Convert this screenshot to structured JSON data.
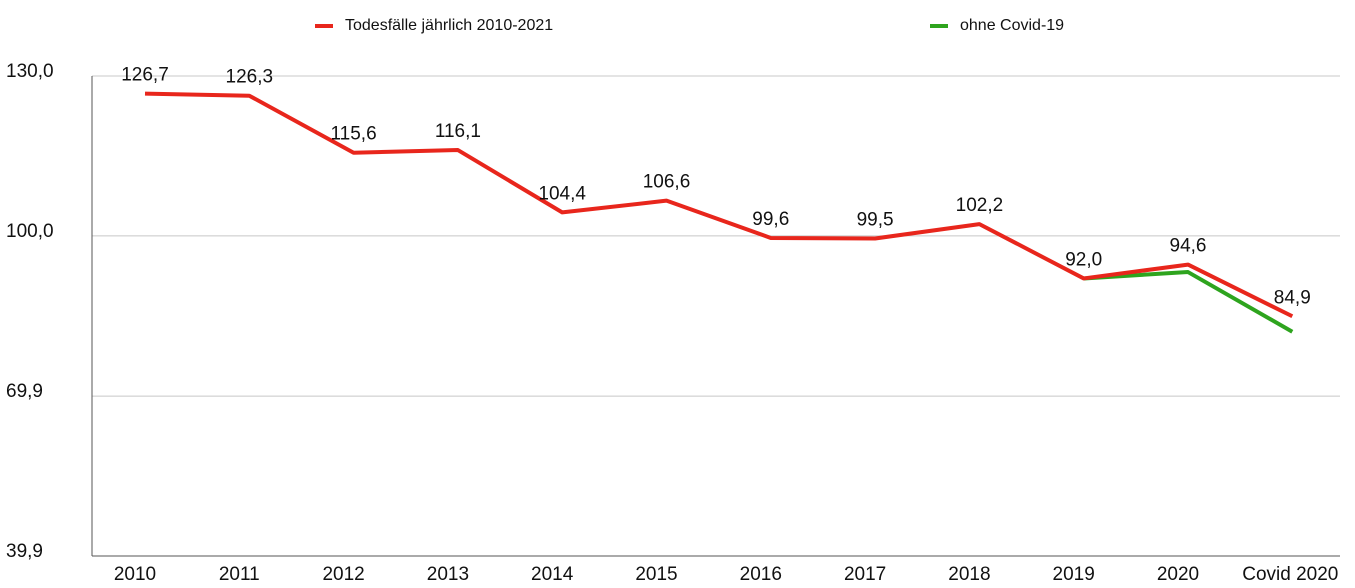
{
  "chart_data": {
    "type": "line",
    "categories": [
      "2010",
      "2011",
      "2012",
      "2013",
      "2014",
      "2015",
      "2016",
      "2017",
      "2018",
      "2019",
      "2020",
      "Covid 2020"
    ],
    "series": [
      {
        "name": "Todesfälle jährlich 2010-2021",
        "color": "#e8261c",
        "values": [
          126.7,
          126.3,
          115.6,
          116.1,
          104.4,
          106.6,
          99.6,
          99.5,
          102.2,
          92.0,
          94.6,
          84.9
        ],
        "value_labels": [
          "126,7",
          "126,3",
          "115,6",
          "116,1",
          "104,4",
          "106,6",
          "99,6",
          "99,5",
          "102,2",
          "92,0",
          "94,6",
          "84,9"
        ]
      },
      {
        "name": "ohne Covid-19",
        "color": "#2ea41e",
        "values": [
          null,
          null,
          null,
          null,
          null,
          null,
          null,
          null,
          null,
          92.0,
          93.2,
          82.0
        ]
      }
    ],
    "ylim": [
      39.9,
      130
    ],
    "yticks": [
      {
        "value": 39.9,
        "label": "39,9"
      },
      {
        "value": 69.9,
        "label": "69,9"
      },
      {
        "value": 100,
        "label": "100,0"
      },
      {
        "value": 130,
        "label": "130,0"
      }
    ],
    "grid": true
  }
}
